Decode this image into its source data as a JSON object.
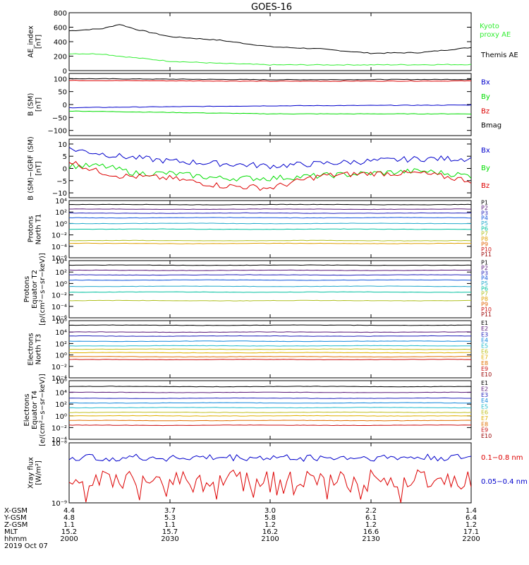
{
  "title": "GOES-16",
  "colors": {
    "black": "#000000",
    "green": "#00dd00",
    "blue": "#0000cc",
    "red": "#dd0000",
    "kyoto": "#33ee33"
  },
  "panels": [
    {
      "id": "ae",
      "ylabel": [
        "AE_index",
        "[nT]"
      ],
      "scale": "linear",
      "ylim": [
        0,
        800
      ],
      "ticks": [
        {
          "v": 800,
          "label": "800"
        },
        {
          "v": 600,
          "label": "600"
        },
        {
          "v": 400,
          "label": "400"
        },
        {
          "v": 200,
          "label": "200"
        },
        {
          "v": 0,
          "label": "0"
        }
      ],
      "legend": [
        {
          "text": "Kyoto",
          "color": "#33ee33"
        },
        {
          "text": "proxy AE",
          "color": "#33ee33"
        },
        {
          "text": "Themis AE",
          "color": "#000000"
        }
      ]
    },
    {
      "id": "bsm",
      "ylabel": [
        "B (SM)",
        "[nT]"
      ],
      "scale": "linear",
      "ylim": [
        -120,
        120
      ],
      "ticks": [
        {
          "v": 100,
          "label": "100"
        },
        {
          "v": 50,
          "label": "50"
        },
        {
          "v": 0,
          "label": "0"
        },
        {
          "v": -50,
          "label": "−50"
        },
        {
          "v": -100,
          "label": "−100"
        }
      ],
      "legend": [
        {
          "text": "Bx",
          "color": "#0000cc"
        },
        {
          "text": "By",
          "color": "#00dd00"
        },
        {
          "text": "Bz",
          "color": "#dd0000"
        },
        {
          "text": "Bmag",
          "color": "#000000"
        }
      ]
    },
    {
      "id": "bigrf",
      "ylabel": [
        "B (SM)−IGRF (SM)",
        "[nT]"
      ],
      "scale": "linear",
      "ylim": [
        -12,
        12
      ],
      "ticks": [
        {
          "v": 10,
          "label": "10"
        },
        {
          "v": 5,
          "label": "5"
        },
        {
          "v": 0,
          "label": "0"
        },
        {
          "v": -5,
          "label": "−5"
        },
        {
          "v": -10,
          "label": "−10"
        }
      ],
      "legend": [
        {
          "text": "Bx",
          "color": "#0000cc"
        },
        {
          "text": "By",
          "color": "#00dd00"
        },
        {
          "text": "Bz",
          "color": "#dd0000"
        }
      ]
    },
    {
      "id": "pn",
      "ylabel": [
        "Protons",
        "North T1"
      ],
      "scale": "log",
      "ylim": [
        -6,
        4
      ],
      "ticks": [
        {
          "v": 4,
          "label": "10⁴"
        },
        {
          "v": 2,
          "label": "10²"
        },
        {
          "v": 0,
          "label": "10⁰"
        },
        {
          "v": -2,
          "label": "10⁻²"
        },
        {
          "v": -4,
          "label": "10⁻⁴"
        },
        {
          "v": -6,
          "label": "10⁻⁶"
        }
      ],
      "legend": [
        {
          "text": "P1",
          "color": "#000000"
        },
        {
          "text": "P2",
          "color": "#5a1a7a"
        },
        {
          "text": "P3",
          "color": "#2222bb"
        },
        {
          "text": "P4",
          "color": "#1155dd"
        },
        {
          "text": "P5",
          "color": "#22aacc"
        },
        {
          "text": "P6",
          "color": "#00c0a0"
        },
        {
          "text": "P7",
          "color": "#b0c020"
        },
        {
          "text": "P8",
          "color": "#e0a000"
        },
        {
          "text": "P9",
          "color": "#e06000"
        },
        {
          "text": "P10",
          "color": "#cc1111"
        },
        {
          "text": "P11",
          "color": "#990000"
        }
      ]
    },
    {
      "id": "pe",
      "ylabel": [
        "Protons",
        "Equator T2",
        "[p/(cm²−s−sr−keV)]"
      ],
      "scale": "log",
      "ylim": [
        -6,
        4
      ],
      "ticks": [
        {
          "v": 4,
          "label": "10⁴"
        },
        {
          "v": 2,
          "label": "10²"
        },
        {
          "v": 0,
          "label": "10⁰"
        },
        {
          "v": -2,
          "label": "10⁻²"
        },
        {
          "v": -4,
          "label": "10⁻⁴"
        },
        {
          "v": -6,
          "label": "10⁻⁶"
        }
      ],
      "legend": [
        {
          "text": "P1",
          "color": "#000000"
        },
        {
          "text": "P2",
          "color": "#5a1a7a"
        },
        {
          "text": "P3",
          "color": "#2222bb"
        },
        {
          "text": "P4",
          "color": "#1155dd"
        },
        {
          "text": "P5",
          "color": "#22aacc"
        },
        {
          "text": "P6",
          "color": "#00c0a0"
        },
        {
          "text": "P7",
          "color": "#b0c020"
        },
        {
          "text": "P8",
          "color": "#e0a000"
        },
        {
          "text": "P9",
          "color": "#e06000"
        },
        {
          "text": "P10",
          "color": "#cc1111"
        },
        {
          "text": "P11",
          "color": "#990000"
        }
      ]
    },
    {
      "id": "en",
      "ylabel": [
        "Electrons",
        "North T3"
      ],
      "scale": "log",
      "ylim": [
        -4,
        6
      ],
      "ticks": [
        {
          "v": 6,
          "label": "10⁶"
        },
        {
          "v": 4,
          "label": "10⁴"
        },
        {
          "v": 2,
          "label": "10²"
        },
        {
          "v": 0,
          "label": "10⁰"
        },
        {
          "v": -2,
          "label": "10⁻²"
        },
        {
          "v": -4,
          "label": "10⁻⁴"
        }
      ],
      "legend": [
        {
          "text": "E1",
          "color": "#000000"
        },
        {
          "text": "E2",
          "color": "#5a1a7a"
        },
        {
          "text": "E3",
          "color": "#2222bb"
        },
        {
          "text": "E4",
          "color": "#1188dd"
        },
        {
          "text": "E5",
          "color": "#22bbcc"
        },
        {
          "text": "E6",
          "color": "#c0c020"
        },
        {
          "text": "E7",
          "color": "#e0b000"
        },
        {
          "text": "E8",
          "color": "#e07000"
        },
        {
          "text": "E9",
          "color": "#cc1111"
        },
        {
          "text": "E10",
          "color": "#990000"
        }
      ]
    },
    {
      "id": "ee",
      "ylabel": [
        "Electrons",
        "Equator T4",
        "[e/(cm²−s−sr−keV)]"
      ],
      "scale": "log",
      "ylim": [
        -4,
        6
      ],
      "ticks": [
        {
          "v": 6,
          "label": "10⁶"
        },
        {
          "v": 4,
          "label": "10⁴"
        },
        {
          "v": 2,
          "label": "10²"
        },
        {
          "v": 0,
          "label": "10⁰"
        },
        {
          "v": -2,
          "label": "10⁻²"
        },
        {
          "v": -4,
          "label": "10⁻⁴"
        }
      ],
      "legend": [
        {
          "text": "E1",
          "color": "#000000"
        },
        {
          "text": "E2",
          "color": "#5a1a7a"
        },
        {
          "text": "E3",
          "color": "#2222bb"
        },
        {
          "text": "E4",
          "color": "#1188dd"
        },
        {
          "text": "E5",
          "color": "#22bbcc"
        },
        {
          "text": "E6",
          "color": "#c0c020"
        },
        {
          "text": "E7",
          "color": "#e0b000"
        },
        {
          "text": "E8",
          "color": "#e07000"
        },
        {
          "text": "E9",
          "color": "#cc1111"
        },
        {
          "text": "E10",
          "color": "#990000"
        }
      ]
    },
    {
      "id": "xray",
      "ylabel": [
        "Xray flux",
        "[W/m²]"
      ],
      "scale": "log",
      "ylim": [
        -9,
        -8
      ],
      "ticks": [
        {
          "v": -8,
          "label": "10⁻⁸"
        },
        {
          "v": -9,
          "label": "10⁻⁹"
        }
      ],
      "legend": [
        {
          "text": "0.1−0.8 nm",
          "color": "#dd0000"
        },
        {
          "text": "0.05−0.4 nm",
          "color": "#0000cc"
        }
      ]
    }
  ],
  "xaxis": {
    "rows": [
      {
        "label": "X-GSM",
        "values": [
          "4.4",
          "3.7",
          "3.0",
          "2.2",
          "1.4"
        ]
      },
      {
        "label": "Y-GSM",
        "values": [
          "4.8",
          "5.3",
          "5.8",
          "6.1",
          "6.4"
        ]
      },
      {
        "label": "Z-GSM",
        "values": [
          "1.1",
          "1.1",
          "1.2",
          "1.2",
          "1.2"
        ]
      },
      {
        "label": "MLT",
        "values": [
          "15.2",
          "15.7",
          "16.2",
          "16.6",
          "17.1"
        ]
      },
      {
        "label": "hhmm",
        "values": [
          "2000",
          "2030",
          "2100",
          "2130",
          "2200"
        ]
      }
    ],
    "date": "2019 Oct 07"
  },
  "chart_data": {
    "type": "line",
    "title": "GOES-16",
    "x_time_range": [
      "2000",
      "2200"
    ],
    "panels": [
      {
        "name": "AE_index",
        "series": [
          {
            "name": "Themis AE",
            "color": "#000000",
            "points": [
              [
                "2000",
                550
              ],
              [
                "2010",
                580
              ],
              [
                "2015",
                640
              ],
              [
                "2020",
                570
              ],
              [
                "2030",
                470
              ],
              [
                "2045",
                420
              ],
              [
                "2100",
                330
              ],
              [
                "2115",
                300
              ],
              [
                "2130",
                240
              ],
              [
                "2145",
                250
              ],
              [
                "2200",
                320
              ]
            ]
          },
          {
            "name": "Kyoto proxy AE",
            "color": "#33ee33",
            "points": [
              [
                "2000",
                235
              ],
              [
                "2010",
                230
              ],
              [
                "2015",
                200
              ],
              [
                "2030",
                130
              ],
              [
                "2045",
                100
              ],
              [
                "2100",
                80
              ],
              [
                "2130",
                80
              ],
              [
                "2200",
                85
              ]
            ]
          }
        ]
      },
      {
        "name": "B (SM)",
        "series": [
          {
            "name": "Bmag",
            "color": "#000000",
            "points": [
              [
                "2000",
                100
              ],
              [
                "2100",
                96
              ],
              [
                "2200",
                97
              ]
            ]
          },
          {
            "name": "Bz",
            "color": "#dd0000",
            "points": [
              [
                "2000",
                93
              ],
              [
                "2100",
                90
              ],
              [
                "2200",
                91
              ]
            ]
          },
          {
            "name": "Bx",
            "color": "#0000cc",
            "points": [
              [
                "2000",
                -12
              ],
              [
                "2100",
                -5
              ],
              [
                "2200",
                -2
              ]
            ]
          },
          {
            "name": "By",
            "color": "#00dd00",
            "points": [
              [
                "2000",
                -25
              ],
              [
                "2100",
                -36
              ],
              [
                "2200",
                -36
              ]
            ]
          }
        ]
      },
      {
        "name": "B (SM)-IGRF (SM)",
        "series": [
          {
            "name": "Bx",
            "color": "#0000cc",
            "points": [
              [
                "2000",
                8
              ],
              [
                "2015",
                5
              ],
              [
                "2030",
                3
              ],
              [
                "2100",
                1
              ],
              [
                "2130",
                3
              ],
              [
                "2145",
                4
              ],
              [
                "2200",
                4
              ]
            ]
          },
          {
            "name": "By",
            "color": "#00dd00",
            "points": [
              [
                "2000",
                1
              ],
              [
                "2010",
                1
              ],
              [
                "2020",
                -2
              ],
              [
                "2030",
                -2
              ],
              [
                "2045",
                -4
              ],
              [
                "2100",
                -4
              ],
              [
                "2130",
                -2
              ],
              [
                "2145",
                -1
              ],
              [
                "2200",
                -3
              ]
            ]
          },
          {
            "name": "Bz",
            "color": "#dd0000",
            "points": [
              [
                "2000",
                3
              ],
              [
                "2008",
                -1
              ],
              [
                "2015",
                -3
              ],
              [
                "2030",
                -4
              ],
              [
                "2045",
                -7
              ],
              [
                "2100",
                -8
              ],
              [
                "2115",
                -3
              ],
              [
                "2130",
                -2
              ],
              [
                "2145",
                -2
              ],
              [
                "2200",
                -5
              ]
            ]
          }
        ]
      },
      {
        "name": "Protons North T1",
        "log10_series": [
          {
            "name": "P1",
            "color": "#000000",
            "level": 3.3
          },
          {
            "name": "P2",
            "color": "#5a1a7a",
            "level": 2.5
          },
          {
            "name": "P3",
            "color": "#2222bb",
            "level": 1.8
          },
          {
            "name": "P4",
            "color": "#1155dd",
            "level": 1.0
          },
          {
            "name": "P5",
            "color": "#22aacc",
            "level": 0.0
          },
          {
            "name": "P6",
            "color": "#00c0a0",
            "level": -1.0
          },
          {
            "name": "P7",
            "color": "#b0c020",
            "level": -3.0
          },
          {
            "name": "P8",
            "color": "#e0a000",
            "level": -3.5
          }
        ]
      },
      {
        "name": "Protons Equator T2",
        "log10_series": [
          {
            "name": "P1",
            "color": "#000000",
            "level": 3.2
          },
          {
            "name": "P2",
            "color": "#5a1a7a",
            "level": 2.3
          },
          {
            "name": "P3",
            "color": "#2222bb",
            "level": 1.5
          },
          {
            "name": "P4",
            "color": "#1155dd",
            "level": 0.6
          },
          {
            "name": "P5",
            "color": "#22aacc",
            "level": -0.5
          },
          {
            "name": "P6",
            "color": "#00c0a0",
            "level": -1.5
          },
          {
            "name": "P7",
            "color": "#b0c020",
            "level": -3.0
          }
        ]
      },
      {
        "name": "Electrons North T3",
        "log10_series": [
          {
            "name": "E1",
            "color": "#000000",
            "level": 5.2
          },
          {
            "name": "E2",
            "color": "#5a1a7a",
            "level": 4.0
          },
          {
            "name": "E3",
            "color": "#2222bb",
            "level": 3.3
          },
          {
            "name": "E4",
            "color": "#1188dd",
            "level": 2.4
          },
          {
            "name": "E5",
            "color": "#22bbcc",
            "level": 1.6
          },
          {
            "name": "E6",
            "color": "#c0c020",
            "level": 1.0
          },
          {
            "name": "E7",
            "color": "#e0b000",
            "level": 0.4
          },
          {
            "name": "E8",
            "color": "#e07000",
            "level": -0.3
          },
          {
            "name": "E9",
            "color": "#cc1111",
            "level": -0.8
          }
        ]
      },
      {
        "name": "Electrons Equator T4",
        "log10_series": [
          {
            "name": "E1",
            "color": "#000000",
            "level": 5.0
          },
          {
            "name": "E2",
            "color": "#5a1a7a",
            "level": 4.0
          },
          {
            "name": "E3",
            "color": "#2222bb",
            "level": 3.0
          },
          {
            "name": "E4",
            "color": "#1188dd",
            "level": 2.2
          },
          {
            "name": "E5",
            "color": "#22bbcc",
            "level": 1.4
          },
          {
            "name": "E6",
            "color": "#c0c020",
            "level": 0.6
          },
          {
            "name": "E7",
            "color": "#e0b000",
            "level": 0.0
          },
          {
            "name": "E8",
            "color": "#e07000",
            "level": -0.8
          },
          {
            "name": "E9",
            "color": "#cc1111",
            "level": -1.6
          }
        ]
      },
      {
        "name": "Xray flux",
        "log10_series": [
          {
            "name": "0.05-0.4 nm",
            "color": "#0000cc",
            "level": -8.25
          },
          {
            "name": "0.1-0.8 nm",
            "color": "#dd0000",
            "level": -8.6
          }
        ]
      }
    ]
  }
}
